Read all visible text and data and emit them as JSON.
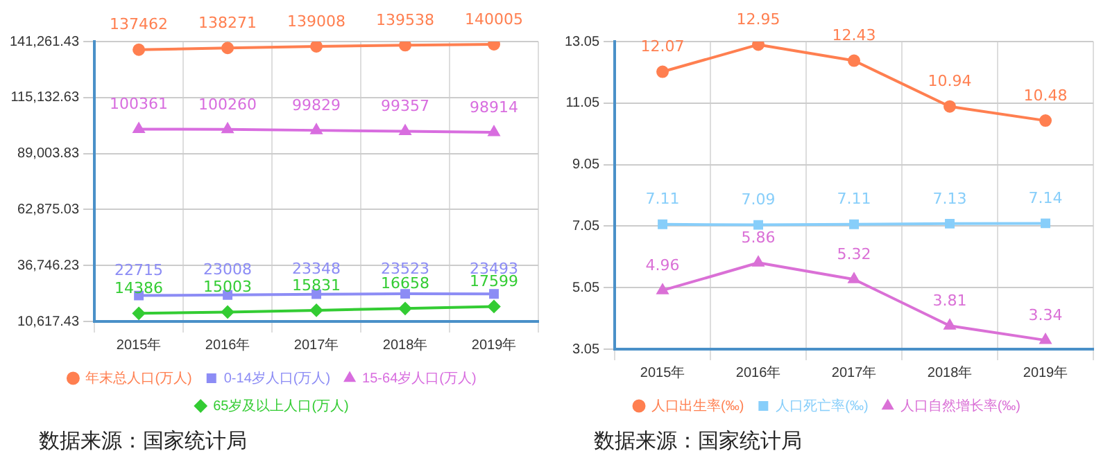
{
  "chart_data": [
    {
      "type": "line",
      "categories": [
        "2015年",
        "2016年",
        "2017年",
        "2018年",
        "2019年"
      ],
      "series": [
        {
          "name": "年末总人口(万人)",
          "color": "#ff7f50",
          "marker": "circle",
          "values": [
            137462,
            138271,
            139008,
            139538,
            140005
          ]
        },
        {
          "name": "0-14岁人口(万人)",
          "color": "#8c8cf5",
          "marker": "square",
          "values": [
            22715,
            23008,
            23348,
            23523,
            23493
          ]
        },
        {
          "name": "15-64岁人口(万人)",
          "color": "#d86ddf",
          "marker": "triangle",
          "values": [
            100361,
            100260,
            99829,
            99357,
            98914
          ]
        },
        {
          "name": "65岁及以上人口(万人)",
          "color": "#33cc33",
          "marker": "diamond",
          "values": [
            14386,
            15003,
            15831,
            16658,
            17599
          ]
        }
      ],
      "ylim": [
        10617.43,
        141261.43
      ],
      "yticks": [
        {
          "value": 10617.43,
          "label": "10,617.43"
        },
        {
          "value": 36746.23,
          "label": "36,746.23"
        },
        {
          "value": 62875.03,
          "label": "62,875.03"
        },
        {
          "value": 89003.83,
          "label": "89,003.83"
        },
        {
          "value": 115132.63,
          "label": "115,132.63"
        },
        {
          "value": 141261.43,
          "label": "141,261.43"
        }
      ],
      "grid": true,
      "legend": "bottom",
      "data_labels": true,
      "annotations": [
        "数据来源：国家统计局"
      ]
    },
    {
      "type": "line",
      "categories": [
        "2015年",
        "2016年",
        "2017年",
        "2018年",
        "2019年"
      ],
      "series": [
        {
          "name": "人口出生率(‰)",
          "color": "#ff7f50",
          "marker": "circle",
          "values": [
            12.07,
            12.95,
            12.43,
            10.94,
            10.48
          ]
        },
        {
          "name": "人口死亡率(‰)",
          "color": "#87cefa",
          "marker": "square",
          "values": [
            7.11,
            7.09,
            7.11,
            7.13,
            7.14
          ]
        },
        {
          "name": "人口自然增长率(‰)",
          "color": "#da70d6",
          "marker": "triangle",
          "values": [
            4.96,
            5.86,
            5.32,
            3.81,
            3.34
          ]
        }
      ],
      "ylim": [
        3.05,
        13.05
      ],
      "yticks": [
        3.05,
        5.05,
        7.05,
        9.05,
        11.05,
        13.05
      ],
      "grid": true,
      "legend": "bottom",
      "data_labels": true,
      "annotations": [
        "数据来源：国家统计局"
      ]
    }
  ]
}
